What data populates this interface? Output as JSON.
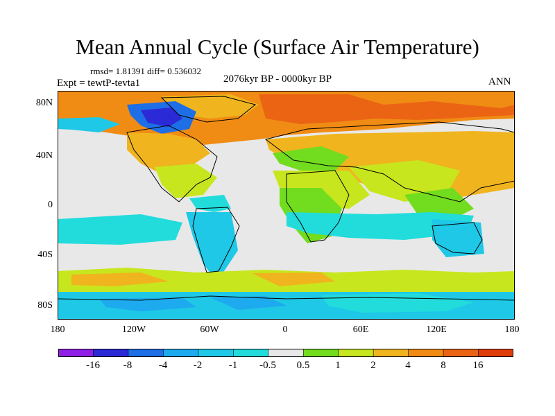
{
  "title": "Mean Annual Cycle (Surface Air Temperature)",
  "stats": "rmsd= 1.81391 diff= 0.536032",
  "experiment": "Expt = tewtP-tevta1",
  "period": "2076kyr BP - 0000kyr BP",
  "season": "ANN",
  "map": {
    "lat_labels": [
      "80N",
      "40N",
      "0",
      "40S",
      "80S"
    ],
    "lon_labels": [
      "180",
      "120W",
      "60W",
      "0",
      "60E",
      "120E",
      "180"
    ]
  },
  "colorbar": {
    "labels": [
      "-16",
      "-8",
      "-4",
      "-2",
      "-1",
      "-0.5",
      "0.5",
      "1",
      "2",
      "4",
      "8",
      "16"
    ],
    "colors": [
      "#8f1ee6",
      "#2a2ad6",
      "#1e6ee6",
      "#1eaaee",
      "#1ec8e6",
      "#22dcdc",
      "#e8e8e8",
      "#72dc1e",
      "#c8e61e",
      "#f0b41e",
      "#f08c14",
      "#eb6414",
      "#e03c0a"
    ]
  }
}
